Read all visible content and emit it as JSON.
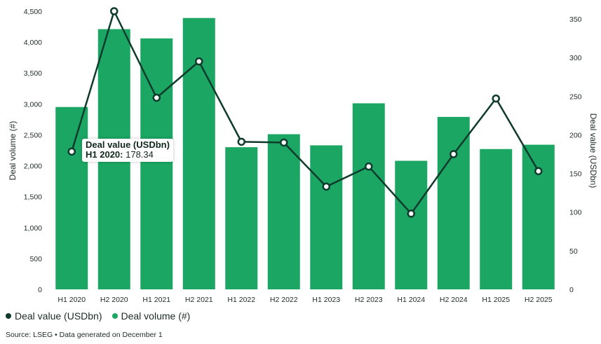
{
  "chart_data": {
    "type": "bar",
    "categories": [
      "H1 2020",
      "H2 2020",
      "H1 2021",
      "H2 2021",
      "H1 2022",
      "H2 2022",
      "H1 2023",
      "H2 2023",
      "H1 2024",
      "H2 2024",
      "H1 2025",
      "H2 2025"
    ],
    "series": [
      {
        "name": "Deal volume (#)",
        "type": "bar",
        "axis": "left",
        "color": "#1ba664",
        "values": [
          2950,
          4210,
          4060,
          4390,
          2300,
          2510,
          2330,
          3010,
          2080,
          2790,
          2270,
          2340
        ]
      },
      {
        "name": "Deal value (USDbn)",
        "type": "line",
        "axis": "right",
        "color": "#0f3b2c",
        "values": [
          178.34,
          360,
          248,
          295,
          191,
          190,
          133,
          159,
          98,
          175,
          247,
          153
        ]
      }
    ],
    "ylabel": "Deal volume (#)",
    "ylabel_right": "Deal value (USDbn)",
    "ylim": [
      0,
      4500
    ],
    "ylim_right": [
      0,
      360
    ],
    "yticks": [
      "0",
      "500",
      "1,000",
      "1,500",
      "2,000",
      "2,500",
      "3,000",
      "3,500",
      "4,000",
      "4,500"
    ],
    "yticks_right": [
      "0",
      "50",
      "100",
      "150",
      "200",
      "250",
      "300",
      "350"
    ],
    "grid": false,
    "legend_position": "bottom-left"
  },
  "tooltip": {
    "title": "Deal value (USDbn)",
    "label": "H1 2020:",
    "value": "178.34"
  },
  "legend": {
    "items": [
      {
        "label": "Deal value (USDbn)",
        "color": "#0f3b2c"
      },
      {
        "label": "Deal volume (#)",
        "color": "#1ba664"
      }
    ]
  },
  "source": "Source: LSEG • Data generated on December 1"
}
